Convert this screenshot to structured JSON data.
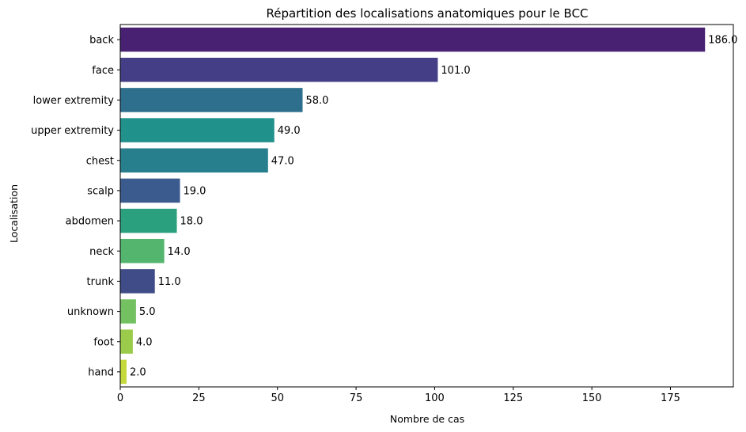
{
  "chart_data": {
    "type": "bar",
    "orientation": "horizontal",
    "title": "Répartition des localisations anatomiques pour le BCC",
    "xlabel": "Nombre de cas",
    "ylabel": "Localisation",
    "xlim": [
      0,
      195
    ],
    "xticks": [
      "0",
      "25",
      "50",
      "75",
      "100",
      "125",
      "150",
      "175"
    ],
    "grid": false,
    "categories": [
      "back",
      "face",
      "lower extremity",
      "upper extremity",
      "chest",
      "scalp",
      "abdomen",
      "neck",
      "trunk",
      "unknown",
      "foot",
      "hand"
    ],
    "values": [
      186,
      101,
      58,
      49,
      47,
      19,
      18,
      14,
      11,
      5,
      4,
      2
    ],
    "value_labels": [
      "186.0",
      "101.0",
      "58.0",
      "49.0",
      "47.0",
      "19.0",
      "18.0",
      "14.0",
      "11.0",
      "5.0",
      "4.0",
      "2.0"
    ],
    "colors": [
      "#482173",
      "#433e85",
      "#2e6f8e",
      "#21918c",
      "#277f8e",
      "#3b5a8d",
      "#2ba07e",
      "#54b56e",
      "#404c87",
      "#73c160",
      "#9bcb4a",
      "#c4d93c"
    ]
  }
}
